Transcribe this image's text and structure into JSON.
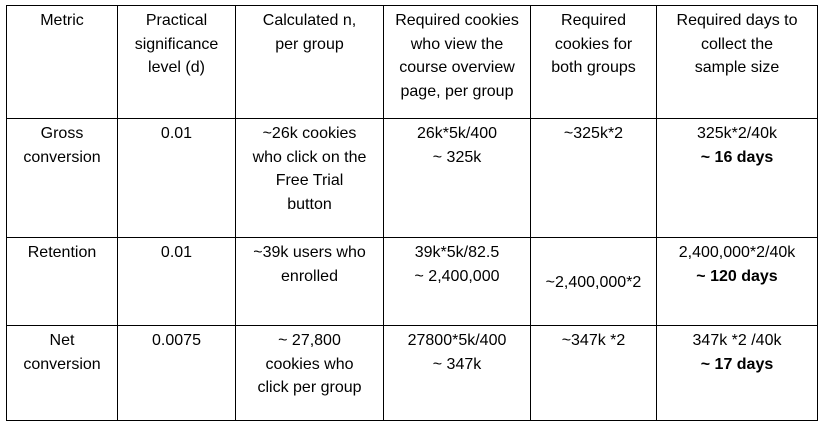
{
  "table": {
    "headers": [
      [
        "Metric"
      ],
      [
        "Practical",
        "significance",
        "level (d)"
      ],
      [
        "Calculated n,",
        "per group"
      ],
      [
        "Required cookies",
        "who view the",
        "course overview",
        "page, per group"
      ],
      [
        "Required",
        "cookies for",
        "both groups"
      ],
      [
        "Required days to",
        "collect the",
        "sample size"
      ]
    ],
    "rows": [
      {
        "metric": [
          "Gross",
          "conversion"
        ],
        "d": "0.01",
        "n": [
          "~26k cookies",
          "who click on the",
          "Free Trial",
          "button"
        ],
        "views": [
          "26k*5k/400",
          "~ 325k"
        ],
        "both": "~325k*2",
        "days": "325k*2/40k",
        "days_result": "~ 16 days"
      },
      {
        "metric": [
          "Retention"
        ],
        "d": "0.01",
        "n": [
          "~39k users who",
          "enrolled"
        ],
        "views": [
          "39k*5k/82.5",
          "~ 2,400,000"
        ],
        "both": "~2,400,000*2",
        "days": "2,400,000*2/40k",
        "days_result": "~ 120 days"
      },
      {
        "metric": [
          "Net",
          "conversion"
        ],
        "d": "0.0075",
        "n": [
          "~ 27,800",
          "cookies who",
          "click per group"
        ],
        "views": [
          "27800*5k/400",
          "~ 347k"
        ],
        "both": "~347k *2",
        "days": "347k *2 /40k",
        "days_result": "~ 17 days"
      }
    ]
  }
}
